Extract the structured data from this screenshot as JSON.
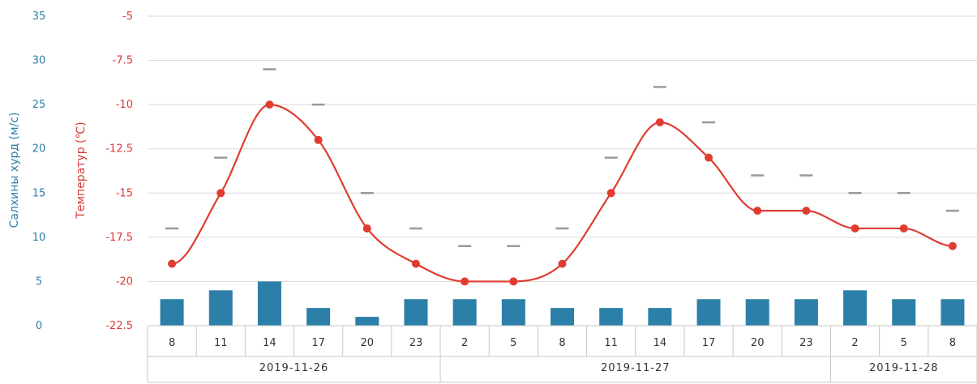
{
  "chart_data": {
    "type": "bar+line",
    "left_axis": {
      "label": "Салхины хурд (м/с)",
      "ticks": [
        "35",
        "30",
        "25",
        "20",
        "15",
        "10",
        "5",
        "0"
      ],
      "range": [
        0,
        35
      ]
    },
    "right_axis": {
      "label": "Температур (℃)",
      "ticks": [
        "-5",
        "-7.5",
        "-10",
        "-12.5",
        "-15",
        "-17.5",
        "-20",
        "-22.5"
      ],
      "range": [
        -22.5,
        -5
      ]
    },
    "categories": [
      "8",
      "11",
      "14",
      "17",
      "20",
      "23",
      "2",
      "5",
      "8",
      "11",
      "14",
      "17",
      "20",
      "23",
      "2",
      "5",
      "8"
    ],
    "dates": [
      {
        "label": "2019-11-26",
        "count": 6
      },
      {
        "label": "2019-11-27",
        "count": 8
      },
      {
        "label": "2019-11-28",
        "count": 3
      }
    ],
    "series": [
      {
        "kind": "bar",
        "axis": "left",
        "values": [
          3,
          4,
          5,
          2,
          1,
          3,
          3,
          3,
          2,
          2,
          2,
          3,
          3,
          3,
          4,
          3,
          3
        ]
      },
      {
        "kind": "line",
        "axis": "right",
        "values": [
          -19,
          -15,
          -10,
          -12,
          -17,
          -19,
          -20,
          -20,
          -19,
          -15,
          -11,
          -13,
          -16,
          -16,
          -17,
          -17,
          -18
        ]
      },
      {
        "kind": "dash",
        "axis": "right",
        "values": [
          -17,
          -13,
          -8,
          -10,
          -15,
          -17,
          -18,
          -18,
          -17,
          -13,
          -9,
          -11,
          -14,
          -14,
          -15,
          -15,
          -16
        ]
      }
    ],
    "colors": {
      "bar": "#2b7fa8",
      "line": "#e03c31",
      "dash": "#9a9a9a",
      "grid": "#d9d9d9"
    },
    "grid": true
  }
}
